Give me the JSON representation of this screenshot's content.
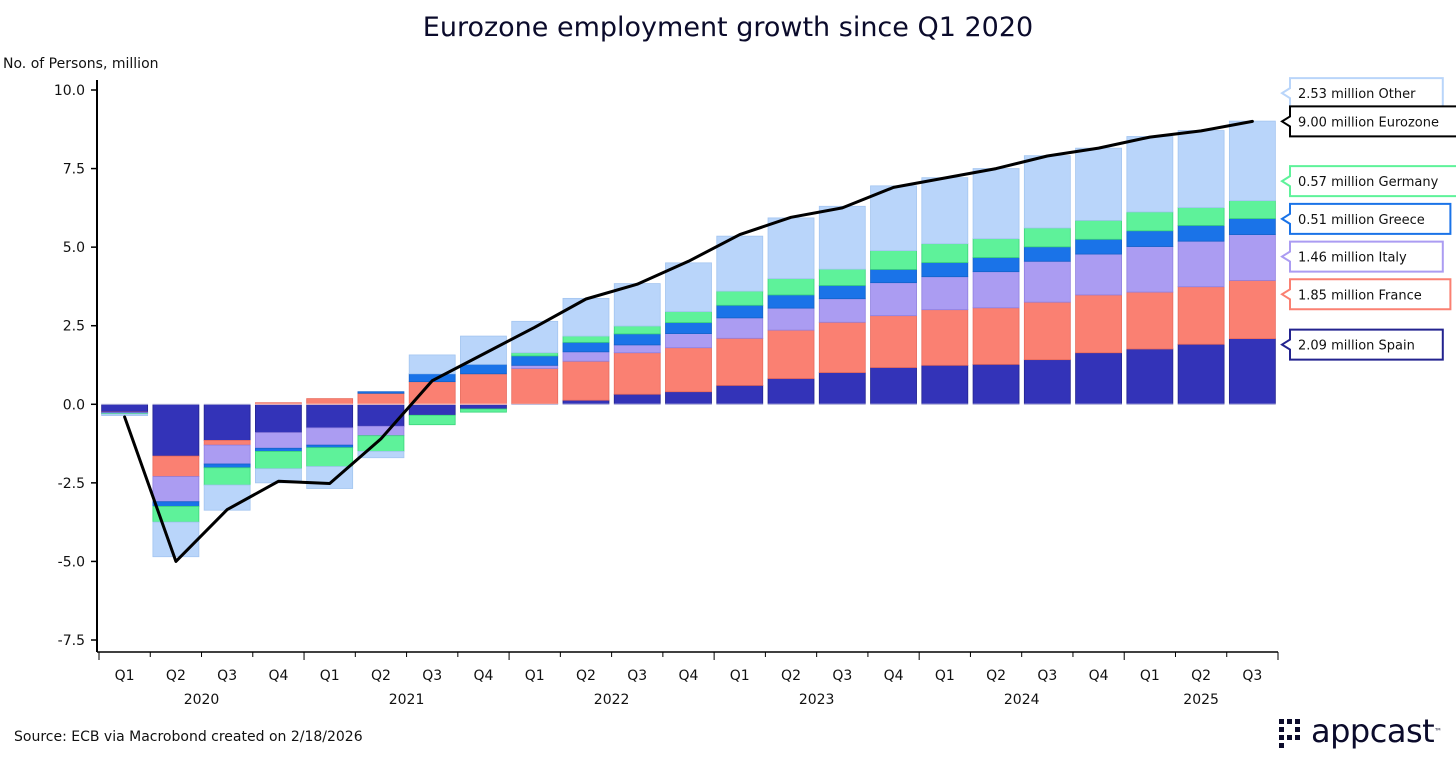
{
  "chart_data": {
    "type": "stacked-bar-line",
    "title": "Eurozone employment growth since Q1 2020",
    "ylabel": "No. of Persons, million",
    "xlabel": "",
    "ylim": [
      -7.5,
      10.0
    ],
    "yticks": [
      "10.0",
      "7.5",
      "5.0",
      "2.5",
      "0.0",
      "-2.5",
      "-5.0",
      "-7.5"
    ],
    "ytick_values": [
      10.0,
      7.5,
      5.0,
      2.5,
      0.0,
      -2.5,
      -5.0,
      -7.5
    ],
    "categories": [
      "Q1",
      "Q2",
      "Q3",
      "Q4",
      "Q1",
      "Q2",
      "Q3",
      "Q4",
      "Q1",
      "Q2",
      "Q3",
      "Q4",
      "Q1",
      "Q2",
      "Q3",
      "Q4",
      "Q1",
      "Q2",
      "Q3",
      "Q4",
      "Q1",
      "Q2",
      "Q3"
    ],
    "years": [
      {
        "label": "2020",
        "start": 0,
        "end": 3
      },
      {
        "label": "2021",
        "start": 4,
        "end": 7
      },
      {
        "label": "2022",
        "start": 8,
        "end": 11
      },
      {
        "label": "2023",
        "start": 12,
        "end": 15
      },
      {
        "label": "2024",
        "start": 16,
        "end": 19
      },
      {
        "label": "2025",
        "start": 20,
        "end": 22
      }
    ],
    "series": [
      {
        "name": "Spain",
        "color": "#3333b8",
        "border": "#23238f",
        "values": [
          -0.25,
          -1.65,
          -1.15,
          -0.9,
          -0.75,
          -0.7,
          -0.35,
          -0.15,
          0.02,
          0.13,
          0.32,
          0.4,
          0.6,
          0.82,
          1.01,
          1.17,
          1.24,
          1.27,
          1.42,
          1.64,
          1.76,
          1.91,
          2.09
        ]
      },
      {
        "name": "France",
        "color": "#fa8072",
        "border": "#e86a5c",
        "values": [
          -0.01,
          -0.65,
          -0.15,
          0.05,
          0.18,
          0.35,
          0.72,
          0.97,
          1.12,
          1.24,
          1.32,
          1.4,
          1.5,
          1.54,
          1.6,
          1.65,
          1.77,
          1.8,
          1.83,
          1.84,
          1.81,
          1.83,
          1.85
        ]
      },
      {
        "name": "Italy",
        "color": "#ab9cf2",
        "border": "#8f7fe0",
        "values": [
          -0.02,
          -0.8,
          -0.6,
          -0.5,
          -0.55,
          -0.3,
          0.0,
          0.0,
          0.1,
          0.3,
          0.25,
          0.45,
          0.65,
          0.7,
          0.75,
          1.05,
          1.05,
          1.15,
          1.3,
          1.3,
          1.45,
          1.45,
          1.46
        ]
      },
      {
        "name": "Greece",
        "color": "#1a73e8",
        "border": "#1462c9",
        "values": [
          -0.01,
          -0.15,
          -0.12,
          -0.1,
          -0.08,
          0.05,
          0.25,
          0.3,
          0.3,
          0.3,
          0.35,
          0.35,
          0.4,
          0.42,
          0.42,
          0.42,
          0.45,
          0.45,
          0.46,
          0.47,
          0.5,
          0.5,
          0.51
        ]
      },
      {
        "name": "Germany",
        "color": "#5ef29a",
        "border": "#3bd47c",
        "values": [
          -0.02,
          -0.5,
          -0.55,
          -0.55,
          -0.6,
          -0.5,
          -0.3,
          -0.1,
          0.1,
          0.2,
          0.25,
          0.35,
          0.45,
          0.52,
          0.52,
          0.6,
          0.6,
          0.6,
          0.6,
          0.6,
          0.6,
          0.57,
          0.57
        ]
      },
      {
        "name": "Other",
        "color": "#b9d5fa",
        "border": "#a3c5f0",
        "values": [
          -0.05,
          -1.1,
          -0.8,
          -0.45,
          -0.7,
          -0.2,
          0.6,
          0.9,
          1.0,
          1.2,
          1.35,
          1.55,
          1.75,
          1.93,
          2.0,
          2.06,
          2.1,
          2.23,
          2.3,
          2.3,
          2.4,
          2.45,
          2.53
        ]
      }
    ],
    "line": {
      "name": "Eurozone",
      "color": "#000000",
      "values": [
        -0.4,
        -5.0,
        -3.35,
        -2.45,
        -2.52,
        -1.1,
        0.75,
        1.6,
        2.45,
        3.35,
        3.82,
        4.55,
        5.4,
        5.95,
        6.25,
        6.9,
        7.2,
        7.5,
        7.9,
        8.15,
        8.5,
        8.7,
        9.0
      ]
    },
    "annotations": [
      {
        "text": "2.53 million Other",
        "color": "#b9d5fa",
        "y": 9.9
      },
      {
        "text": "9.00 million Eurozone",
        "color": "#000000",
        "y": 9.0
      },
      {
        "text": "0.57 million Germany",
        "color": "#5ef29a",
        "y": 7.1
      },
      {
        "text": "0.51 million Greece",
        "color": "#1a73e8",
        "y": 5.9
      },
      {
        "text": "1.46 million Italy",
        "color": "#ab9cf2",
        "y": 4.7
      },
      {
        "text": "1.85 million France",
        "color": "#fa8072",
        "y": 3.5
      },
      {
        "text": "2.09 million Spain",
        "color": "#23238f",
        "y": 1.9
      }
    ]
  },
  "footer": {
    "source": "Source: ECB via Macrobond created on 2/18/2026",
    "brand": "appcast",
    "brand_tm": "™"
  }
}
